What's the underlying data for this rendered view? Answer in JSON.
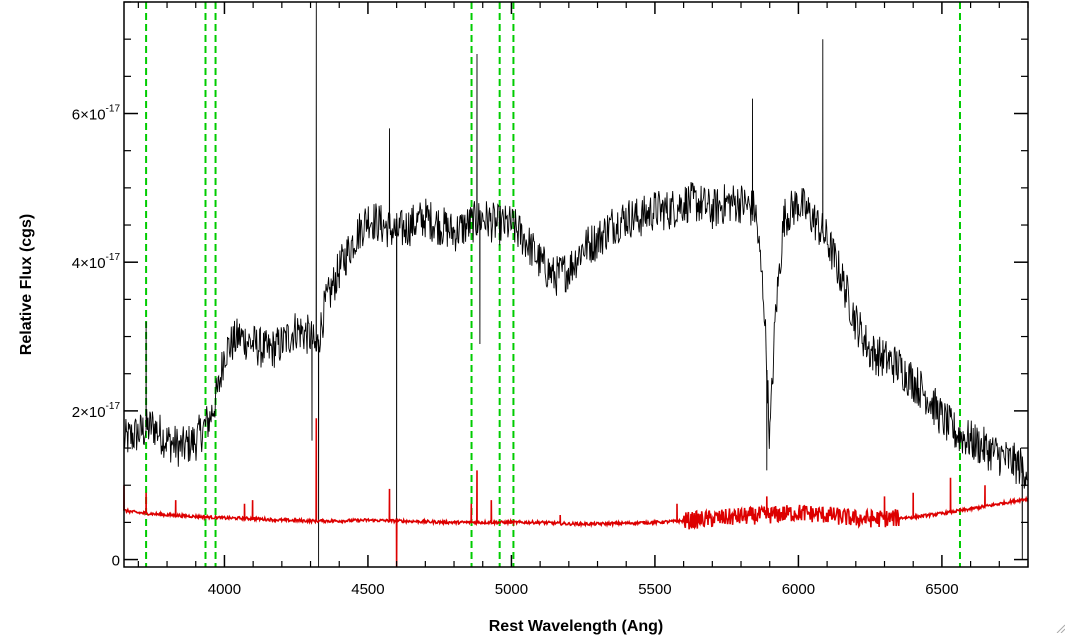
{
  "chart_data": {
    "type": "line",
    "title": "",
    "xlabel": "Rest Wavelength (Ang)",
    "ylabel": "Relative Flux (cgs)",
    "xlim": [
      3650,
      6800
    ],
    "ylim": [
      -1e-18,
      7.5e-17
    ],
    "x_ticks": [
      4000,
      4500,
      5000,
      5500,
      6000,
      6500
    ],
    "x_tick_labels": [
      "4000",
      "4500",
      "5000",
      "5500",
      "6000",
      "6500"
    ],
    "y_ticks": [
      0,
      2e-17,
      4e-17,
      6e-17
    ],
    "y_tick_labels": [
      {
        "mant": "0",
        "exp": ""
      },
      {
        "mant": "2×10",
        "exp": "-17"
      },
      {
        "mant": "4×10",
        "exp": "-17"
      },
      {
        "mant": "6×10",
        "exp": "-17"
      }
    ],
    "grid": false,
    "series": [
      {
        "role": "spectrum",
        "color": "#000000",
        "x": [
          3650,
          3700,
          3750,
          3800,
          3850,
          3900,
          3950,
          3980,
          4000,
          4050,
          4100,
          4150,
          4200,
          4250,
          4300,
          4320,
          4350,
          4400,
          4450,
          4500,
          4550,
          4600,
          4650,
          4700,
          4750,
          4800,
          4850,
          4900,
          4950,
          5000,
          5050,
          5100,
          5150,
          5200,
          5250,
          5300,
          5350,
          5400,
          5450,
          5500,
          5550,
          5600,
          5650,
          5700,
          5750,
          5800,
          5850,
          5880,
          5900,
          5920,
          5950,
          6000,
          6050,
          6100,
          6150,
          6200,
          6250,
          6300,
          6350,
          6400,
          6450,
          6500,
          6550,
          6600,
          6650,
          6700,
          6750,
          6800
        ],
        "y": [
          1.6e-17,
          1.7e-17,
          1.8e-17,
          1.6e-17,
          1.5e-17,
          1.6e-17,
          1.9e-17,
          2.3e-17,
          2.8e-17,
          3e-17,
          2.9e-17,
          2.8e-17,
          2.9e-17,
          3.1e-17,
          3e-17,
          2.8e-17,
          3.4e-17,
          3.9e-17,
          4.3e-17,
          4.6e-17,
          4.5e-17,
          4.4e-17,
          4.5e-17,
          4.6e-17,
          4.5e-17,
          4.4e-17,
          4.5e-17,
          4.6e-17,
          4.5e-17,
          4.5e-17,
          4.3e-17,
          4e-17,
          3.8e-17,
          3.9e-17,
          4.2e-17,
          4.3e-17,
          4.5e-17,
          4.6e-17,
          4.6e-17,
          4.7e-17,
          4.7e-17,
          4.8e-17,
          4.8e-17,
          4.7e-17,
          4.8e-17,
          4.8e-17,
          4.7e-17,
          3.5e-17,
          1.6e-17,
          3.3e-17,
          4.6e-17,
          4.8e-17,
          4.6e-17,
          4.3e-17,
          3.8e-17,
          3.2e-17,
          2.8e-17,
          2.7e-17,
          2.6e-17,
          2.4e-17,
          2.2e-17,
          1.9e-17,
          1.7e-17,
          1.6e-17,
          1.5e-17,
          1.4e-17,
          1.3e-17,
          1.2e-17
        ],
        "noise": 2.8e-18,
        "features": [
          {
            "x": 3727,
            "value": 3.2e-17
          },
          {
            "x": 4305,
            "value": 1.6e-17
          },
          {
            "x": 4320,
            "value": 7.5e-17
          },
          {
            "x": 4328,
            "value": -1e-18
          },
          {
            "x": 4600,
            "value": -1e-18
          },
          {
            "x": 4575,
            "value": 5.8e-17
          },
          {
            "x": 4880,
            "value": 6.8e-17
          },
          {
            "x": 4890,
            "value": 2.9e-17
          },
          {
            "x": 5840,
            "value": 6.2e-17
          },
          {
            "x": 5890,
            "value": 1.2e-17
          },
          {
            "x": 6085,
            "value": 7e-17
          },
          {
            "x": 6780,
            "value": 0.0
          }
        ]
      },
      {
        "role": "error",
        "color": "#dd0000",
        "x": [
          3650,
          3700,
          3800,
          3900,
          4000,
          4100,
          4200,
          4300,
          4400,
          4500,
          4600,
          4700,
          4800,
          4900,
          5000,
          5100,
          5200,
          5300,
          5400,
          5500,
          5600,
          5700,
          5800,
          5900,
          6000,
          6100,
          6200,
          6300,
          6400,
          6500,
          6600,
          6700,
          6800
        ],
        "y": [
          6.6e-18,
          6.3e-18,
          6e-18,
          5.8e-18,
          5.6e-18,
          5.5e-18,
          5.3e-18,
          5.2e-18,
          5.2e-18,
          5.3e-18,
          5.2e-18,
          5.1e-18,
          5e-18,
          5e-18,
          5e-18,
          5e-18,
          4.8e-18,
          4.8e-18,
          4.9e-18,
          5e-18,
          5.2e-18,
          5.5e-18,
          5.8e-18,
          6e-18,
          6.3e-18,
          6e-18,
          5.5e-18,
          5.5e-18,
          5.7e-18,
          6.2e-18,
          6.8e-18,
          7.5e-18,
          8.2e-18
        ],
        "features": [
          {
            "x": 3650,
            "value": 1e-17
          },
          {
            "x": 3727,
            "value": 9e-18
          },
          {
            "x": 3830,
            "value": 8e-18
          },
          {
            "x": 4070,
            "value": 7.5e-18
          },
          {
            "x": 4098,
            "value": 8e-18
          },
          {
            "x": 4320,
            "value": 1.9e-17
          },
          {
            "x": 4575,
            "value": 9.5e-18
          },
          {
            "x": 4600,
            "value": -1e-18
          },
          {
            "x": 4860,
            "value": 7.5e-18
          },
          {
            "x": 4880,
            "value": 1.2e-17
          },
          {
            "x": 4930,
            "value": 8e-18
          },
          {
            "x": 5170,
            "value": 6e-18
          },
          {
            "x": 5577,
            "value": 7.5e-18
          },
          {
            "x": 5890,
            "value": 8.5e-18
          },
          {
            "x": 6300,
            "value": 8.5e-18
          },
          {
            "x": 6400,
            "value": 9e-18
          },
          {
            "x": 6530,
            "value": 1.1e-17
          },
          {
            "x": 6650,
            "value": 1e-17
          }
        ],
        "noise_region": [
          5600,
          6350
        ],
        "noise": 1.2e-18
      }
    ],
    "reference_lines": {
      "color": "#00cc00",
      "style": "dashed",
      "x": [
        3727,
        3934,
        3969,
        4861,
        4959,
        5007,
        6563
      ]
    }
  }
}
